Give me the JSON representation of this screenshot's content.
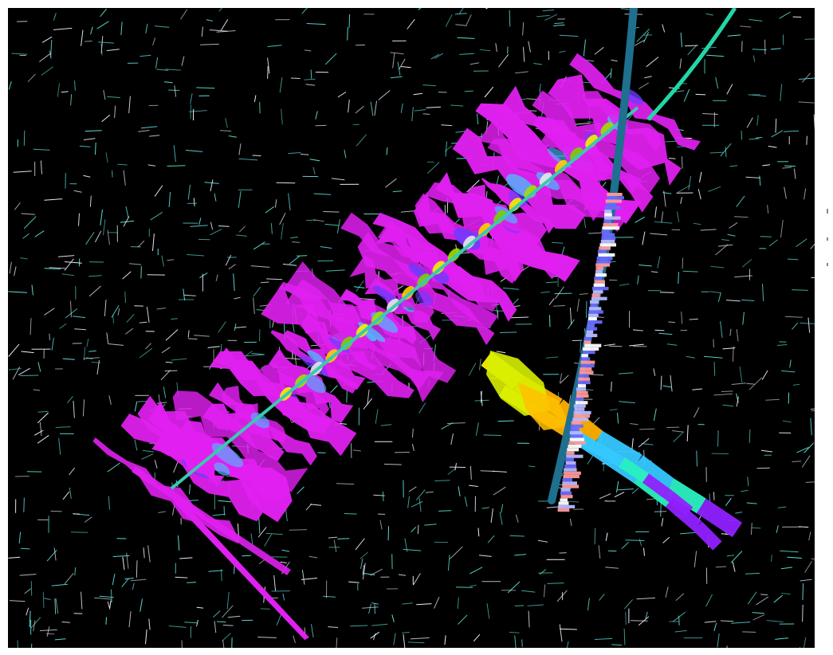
{
  "scene": {
    "background_color": "#000000",
    "frame_color": "#ffffff",
    "grid_color_primary": "#5ce0d8",
    "grid_color_secondary": "#f2f2ff",
    "fracture_color": "#e020f0",
    "fracture_highlight_color": "#4fb8ff",
    "horizontal_well_color": "#3ac9b0",
    "vertical_well_color": "#1f6f8f",
    "curved_well_color": "#22d6a6",
    "log_track_palette": [
      "#ffffff",
      "#b8b8ff",
      "#6a6aff",
      "#ff9a9a"
    ],
    "fracture_cluster_palette": [
      "#f4f000",
      "#ffb000",
      "#35c8ff",
      "#2af0c0",
      "#9020ff"
    ],
    "icons": [
      "fracture-network-icon",
      "wellbore-icon",
      "microseismic-grid-icon"
    ]
  }
}
